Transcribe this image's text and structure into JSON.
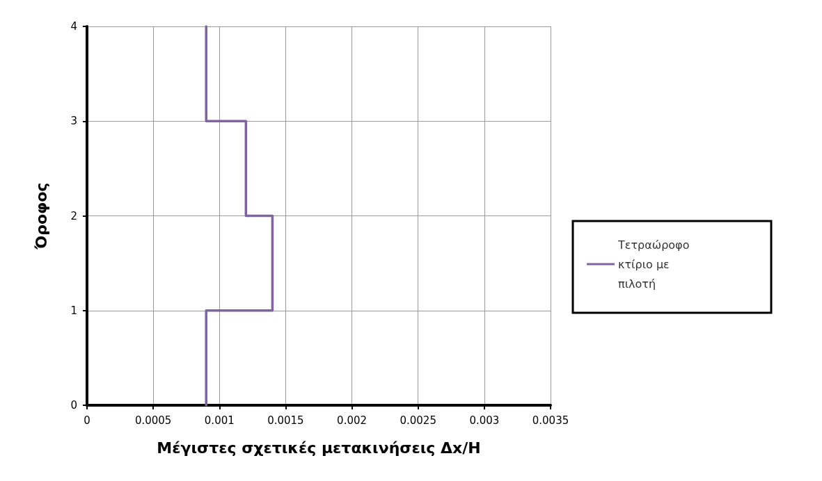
{
  "chart_data": {
    "type": "line",
    "xlabel": "Μέγιστες σχετικές μετακινήσεις Δx/H",
    "ylabel": "Όροφος",
    "series": [
      {
        "name": "Τετραώροφο κτίριο με πιλοτή",
        "color": "#8064a2",
        "x": [
          0.0009,
          0.0009,
          0.0014,
          0.0014,
          0.0012,
          0.0012,
          0.0009,
          0.0009
        ],
        "values": [
          0,
          1,
          1,
          2,
          2,
          3,
          3,
          4
        ]
      }
    ],
    "xlim": [
      0,
      0.0035
    ],
    "xticks": [
      0,
      0.0005,
      0.001,
      0.0015,
      0.002,
      0.0025,
      0.003,
      0.0035
    ],
    "ylim": [
      0,
      4
    ],
    "yticks": [
      0,
      1,
      2,
      3,
      4
    ],
    "grid": true,
    "legend": "right",
    "marker": "none",
    "line_style": "solid"
  }
}
